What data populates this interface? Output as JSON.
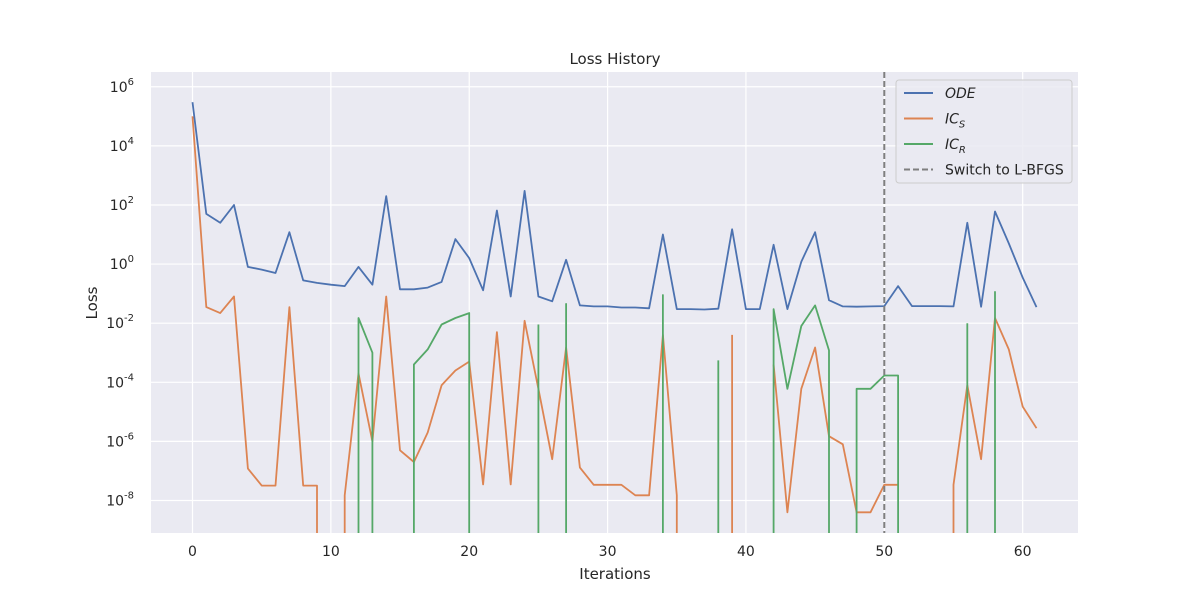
{
  "chart_data": {
    "type": "line",
    "title": "Loss History",
    "xlabel": "Iterations",
    "ylabel": "Loss",
    "x_scale": "linear",
    "y_scale": "log",
    "xlim": [
      -3,
      64
    ],
    "ylim_log10": [
      -9.1,
      6.5
    ],
    "x_ticks": [
      0,
      10,
      20,
      30,
      40,
      50,
      60
    ],
    "y_ticks_exp": [
      -8,
      -6,
      -4,
      -2,
      0,
      2,
      4,
      6
    ],
    "y_tick_base": "10",
    "grid": true,
    "legend_position": "top-right",
    "colors": {
      "ODE": "#4c72b0",
      "IC_S": "#dd8452",
      "IC_R": "#55a868",
      "switch": "#7f7f7f",
      "background": "#eaeaf2",
      "grid": "#ffffff"
    },
    "series": [
      {
        "key": "ODE",
        "name": "ODE",
        "legend_main": "ODE",
        "legend_sub": "",
        "x": [
          0,
          1,
          2,
          3,
          4,
          5,
          6,
          7,
          8,
          9,
          10,
          11,
          12,
          13,
          14,
          15,
          16,
          17,
          18,
          19,
          20,
          21,
          22,
          23,
          24,
          25,
          26,
          27,
          28,
          29,
          30,
          31,
          32,
          33,
          34,
          35,
          36,
          37,
          38,
          39,
          40,
          41,
          42,
          43,
          44,
          45,
          46,
          47,
          48,
          49,
          50,
          51,
          52,
          53,
          54,
          55,
          56,
          57,
          58,
          59,
          60,
          61
        ],
        "y": [
          300000.0,
          50,
          25,
          100,
          0.8,
          0.65,
          0.5,
          12,
          0.28,
          0.23,
          0.2,
          0.18,
          0.8,
          0.2,
          200,
          0.14,
          0.14,
          0.16,
          0.25,
          7,
          1.6,
          0.13,
          65,
          0.08,
          300,
          0.08,
          0.055,
          1.4,
          0.04,
          0.037,
          0.037,
          0.034,
          0.034,
          0.032,
          10,
          0.03,
          0.03,
          0.029,
          0.031,
          15,
          0.03,
          0.03,
          4.5,
          0.03,
          1.2,
          12,
          0.06,
          0.037,
          0.036,
          0.037,
          0.038,
          0.18,
          0.038,
          0.038,
          0.038,
          0.037,
          25,
          0.036,
          60,
          5,
          0.35,
          0.035
        ]
      },
      {
        "key": "IC_S",
        "name": "IC_S",
        "legend_main": "IC",
        "legend_sub": "S",
        "x": [
          0,
          1,
          2,
          3,
          4,
          5,
          6,
          7,
          8,
          9,
          9,
          null,
          11,
          11,
          12,
          13,
          14,
          15,
          16,
          17,
          18,
          19,
          20,
          21,
          22,
          23,
          24,
          25,
          26,
          27,
          28,
          29,
          30,
          31,
          32,
          33,
          34,
          35,
          35,
          null,
          39,
          39,
          40,
          41,
          42,
          43,
          44,
          45,
          46,
          47,
          48,
          49,
          50,
          51,
          null,
          55,
          55,
          56,
          57,
          58,
          59,
          60,
          61
        ],
        "y": [
          100000.0,
          0.035,
          0.022,
          0.08,
          1.2e-07,
          3.2e-08,
          3.2e-08,
          0.035,
          3.2e-08,
          3.2e-08,
          1e-10,
          null,
          1e-10,
          1.5e-08,
          0.0002,
          1e-06,
          0.08,
          5e-07,
          2e-07,
          2e-06,
          8e-05,
          0.00025,
          0.0005,
          3.5e-08,
          0.005,
          3.5e-08,
          0.012,
          6e-05,
          2.5e-07,
          0.0015,
          1.3e-07,
          3.4e-08,
          3.4e-08,
          3.4e-08,
          1.5e-08,
          1.5e-08,
          0.004,
          1.5e-08,
          1e-10,
          null,
          1e-10,
          0.004,
          null,
          null,
          0.0004,
          4e-09,
          6e-05,
          0.0015,
          1.5e-06,
          8e-07,
          4e-09,
          4e-09,
          3.4e-08,
          3.4e-08,
          null,
          1e-10,
          3.4e-08,
          8e-05,
          2.5e-07,
          0.015,
          0.0013,
          1.5e-05,
          2.8e-06
        ]
      },
      {
        "key": "IC_R",
        "name": "IC_R",
        "legend_main": "IC",
        "legend_sub": "R",
        "x": [
          12,
          12,
          13,
          13,
          null,
          16,
          16,
          17,
          18,
          19,
          20,
          20,
          null,
          25,
          25,
          null,
          27,
          27,
          27,
          null,
          34,
          34,
          34,
          null,
          38,
          38,
          null,
          42,
          42,
          43,
          44,
          45,
          46,
          46,
          null,
          48,
          48,
          49,
          50,
          51,
          51,
          null,
          56,
          56,
          null,
          58,
          58
        ],
        "y": [
          1e-10,
          0.015,
          0.001,
          1e-10,
          null,
          1e-10,
          0.0004,
          0.0013,
          0.009,
          0.015,
          0.022,
          1e-10,
          null,
          1e-10,
          0.009,
          null,
          1e-10,
          0.045,
          1e-10,
          null,
          1e-10,
          0.09,
          1e-10,
          null,
          1e-10,
          0.00055,
          null,
          1e-10,
          0.03,
          6e-05,
          0.008,
          0.04,
          0.0012,
          1e-10,
          null,
          1e-10,
          6e-05,
          6e-05,
          0.00017,
          0.00017,
          1e-10,
          null,
          1e-10,
          0.01,
          null,
          1e-10,
          0.12
        ]
      }
    ],
    "vline": {
      "x": 50,
      "label": "Switch to L-BFGS"
    }
  }
}
